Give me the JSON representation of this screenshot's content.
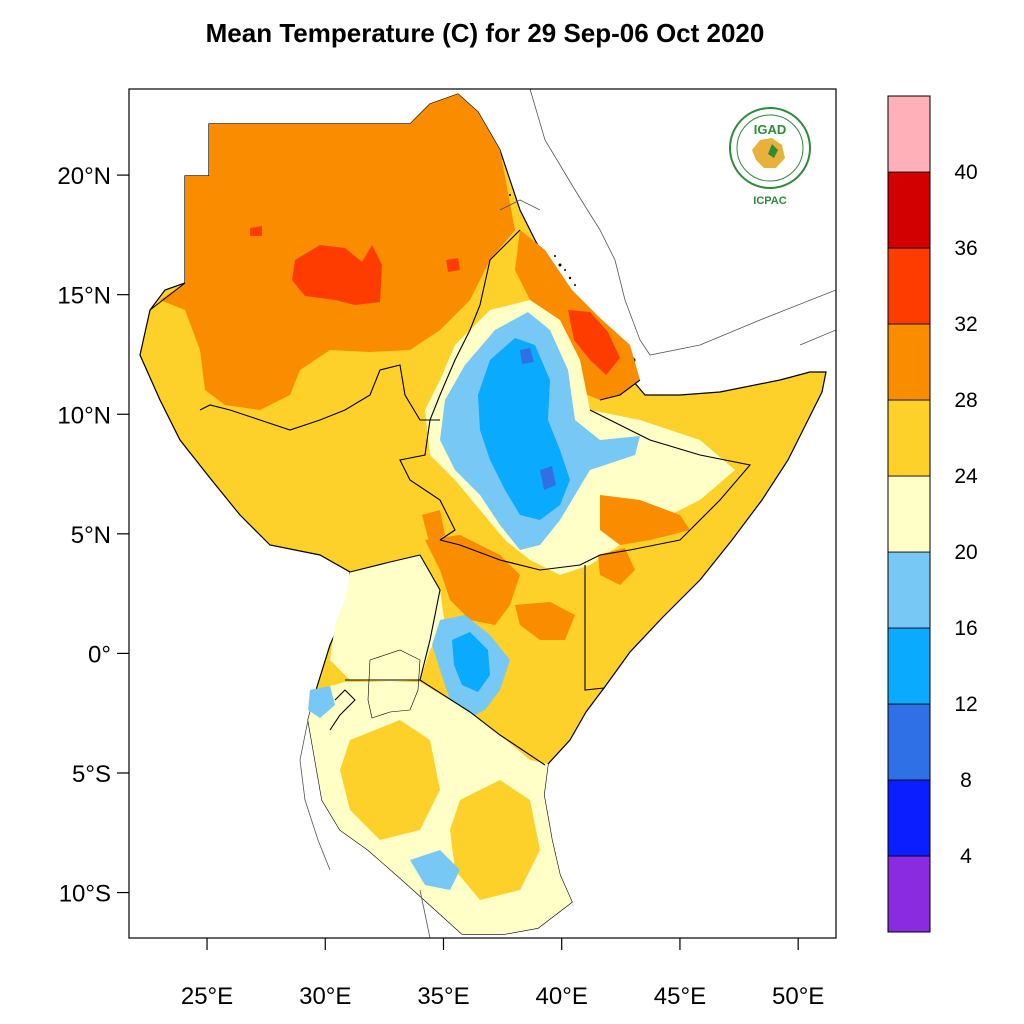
{
  "title": "Mean Temperature (C) for 29 Sep-06 Oct 2020",
  "logo": {
    "top_text": "IGAD",
    "bottom_text": "ICPAC",
    "icon": "igad-icpac-logo"
  },
  "map": {
    "lon_range": [
      21.7,
      51.6
    ],
    "lat_range": [
      -11.9,
      23.6
    ],
    "lon_ticks": [
      {
        "value": 25,
        "label": "25°E"
      },
      {
        "value": 30,
        "label": "30°E"
      },
      {
        "value": 35,
        "label": "35°E"
      },
      {
        "value": 40,
        "label": "40°E"
      },
      {
        "value": 45,
        "label": "45°E"
      },
      {
        "value": 50,
        "label": "50°E"
      }
    ],
    "lat_ticks": [
      {
        "value": 20,
        "label": "20°N"
      },
      {
        "value": 15,
        "label": "15°N"
      },
      {
        "value": 10,
        "label": "10°N"
      },
      {
        "value": 5,
        "label": "5°N"
      },
      {
        "value": 0,
        "label": "0°"
      },
      {
        "value": -5,
        "label": "5°S"
      },
      {
        "value": -10,
        "label": "10°S"
      }
    ]
  },
  "colorbar": {
    "bins": [
      {
        "color": "#8a2be2"
      },
      {
        "color": "#0a1eff"
      },
      {
        "color": "#3070e6"
      },
      {
        "color": "#0aaaff"
      },
      {
        "color": "#78c8f5"
      },
      {
        "color": "#ffffc8"
      },
      {
        "color": "#fdd12a"
      },
      {
        "color": "#fa8c00"
      },
      {
        "color": "#ff3c00"
      },
      {
        "color": "#d20000"
      },
      {
        "color": "#ffb0b8"
      }
    ],
    "labels": [
      "4",
      "8",
      "12",
      "16",
      "20",
      "24",
      "28",
      "32",
      "36",
      "40"
    ]
  }
}
